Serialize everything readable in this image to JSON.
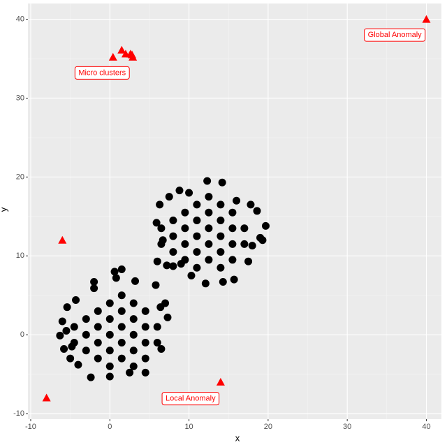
{
  "chart_data": {
    "type": "scatter",
    "x_label": "x",
    "y_label": "y",
    "xlim": [
      -10.35,
      41.9
    ],
    "ylim": [
      -10.7,
      42.0
    ],
    "xticks": [
      -10,
      0,
      10,
      20,
      30,
      40
    ],
    "yticks": [
      -10,
      0,
      10,
      20,
      30,
      40
    ],
    "grid": true,
    "minor_grid": true,
    "series": [
      {
        "color": "#000000",
        "marker": "circle",
        "x": [
          -3,
          -3,
          -3,
          -1.5,
          -1.5,
          -1.5,
          -1.5,
          0,
          0,
          0,
          0,
          0,
          1.5,
          1.5,
          1.5,
          1.5,
          1.5,
          3,
          3,
          3,
          3,
          3,
          4.5,
          4.5,
          4.5,
          4.5,
          6,
          6,
          -4.5,
          -4.5,
          -6.3,
          -6,
          -5.4,
          -5.8,
          -5,
          -4,
          -2.4,
          0,
          2.5,
          4.5,
          6.5,
          6.4,
          7,
          5.8,
          3.2,
          0.6,
          0.8,
          -2,
          -2,
          -4.3,
          -5.5,
          1.5,
          7.3,
          -4.8,
          8,
          8,
          8,
          9.5,
          9.5,
          9.5,
          9.5,
          11,
          11,
          11,
          11,
          11,
          12.5,
          12.5,
          12.5,
          12.5,
          12.5,
          14,
          14,
          14,
          14,
          14,
          15.5,
          15.5,
          15.5,
          15.5,
          17,
          17,
          6.5,
          6.5,
          5.9,
          6.3,
          7.5,
          6.7,
          8,
          9,
          10.3,
          12.1,
          14.3,
          15.7,
          17.5,
          18,
          19.3,
          19.7,
          18.6,
          17.8,
          16,
          14.2,
          12.3,
          10,
          8.8,
          6,
          7.2,
          19
        ],
        "y": [
          0,
          2,
          -2,
          -3,
          -1,
          1,
          3,
          -4,
          -2,
          0,
          2,
          4,
          -3,
          -1,
          1,
          3,
          5,
          -4,
          -2,
          0,
          2,
          4,
          -3,
          -1,
          1,
          3,
          -1,
          1,
          1,
          -1,
          -0.1,
          1.7,
          3.5,
          -1.8,
          -3,
          -3.8,
          -5.4,
          -5.3,
          -4.8,
          -4.8,
          -1.8,
          3.5,
          4,
          6.3,
          6.8,
          8,
          7.2,
          6.7,
          5.9,
          4.4,
          0.5,
          8.3,
          2.2,
          -1.5,
          12.5,
          14.5,
          10.5,
          9.5,
          11.5,
          13.5,
          15.5,
          8.5,
          10.5,
          12.5,
          14.5,
          16.5,
          9.5,
          11.5,
          13.5,
          15.5,
          17.5,
          8.5,
          10.5,
          12.5,
          14.5,
          16.5,
          9.5,
          11.5,
          13.5,
          15.5,
          11.5,
          13.5,
          13.5,
          11.5,
          14.2,
          16.5,
          17.5,
          12,
          8.7,
          9,
          7.5,
          6.5,
          6.7,
          7,
          9.3,
          11.3,
          12,
          13.8,
          15.7,
          16.5,
          17,
          19.3,
          19.5,
          18,
          18.3,
          9.3,
          8.8,
          12.3
        ]
      },
      {
        "color": "#ff0000",
        "marker": "triangle",
        "x": [
          -8,
          -6,
          14,
          40,
          0.4,
          1.5,
          2,
          2.6,
          2.9,
          2.8
        ],
        "y": [
          -8,
          12,
          -6,
          40,
          35.2,
          36.1,
          35.6,
          35.6,
          35.2,
          35.5
        ]
      }
    ],
    "annotations": [
      {
        "text": "Micro clusters",
        "x": -0.97,
        "y": 33.2
      },
      {
        "text": "Global Anomaly",
        "x": 36.0,
        "y": 38.0
      },
      {
        "text": "Local Anomaly",
        "x": 10.2,
        "y": -8.1
      }
    ]
  }
}
